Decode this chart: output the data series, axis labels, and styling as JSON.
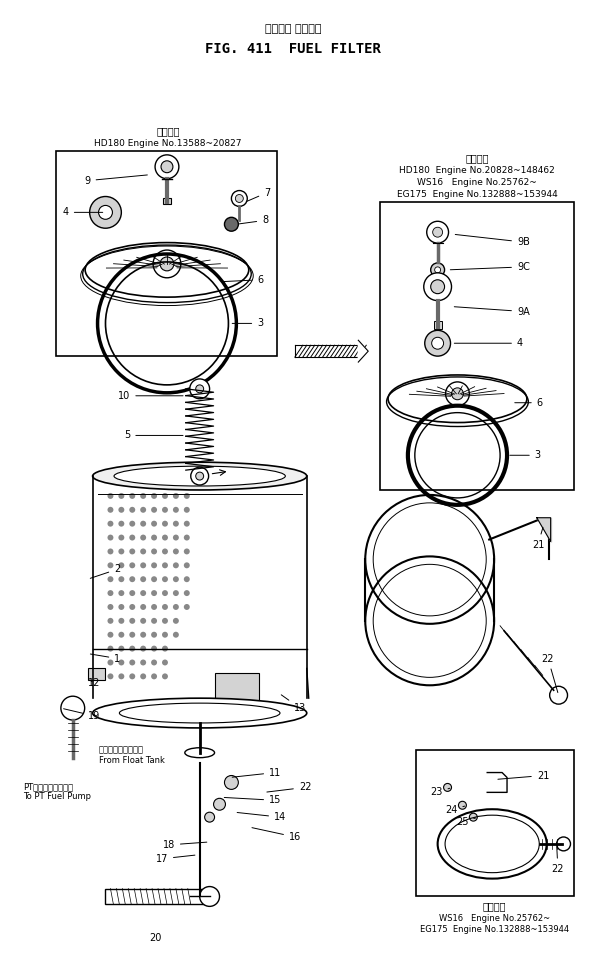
{
  "title_jp": "フュエル フィルタ",
  "title_en": "FIG. 411  FUEL FILTER",
  "bg_color": "#ffffff",
  "line_color": "#000000",
  "box1_label_jp": "適用号番",
  "box1_label_en": "HD180 Engine No.13588~20827",
  "box2_label_jp": "適用号番",
  "box2_label_en1": "HD180  Engine No.20828~148462",
  "box2_label_en2": "WS16   Engine No.25762~",
  "box2_label_en3": "EG175  Engine No.132888~153944",
  "box3_label_jp": "適用号番",
  "box3_label_en1": "WS16   Engine No.25762~",
  "box3_label_en2": "EG175  Engine No.132888~153944",
  "text_float_jp": "フロートタンクから",
  "text_float_en": "From Float Tank",
  "text_pt_jp": "PTフェエルポンプへ",
  "text_pt_en": "To PT Fuel Pump"
}
